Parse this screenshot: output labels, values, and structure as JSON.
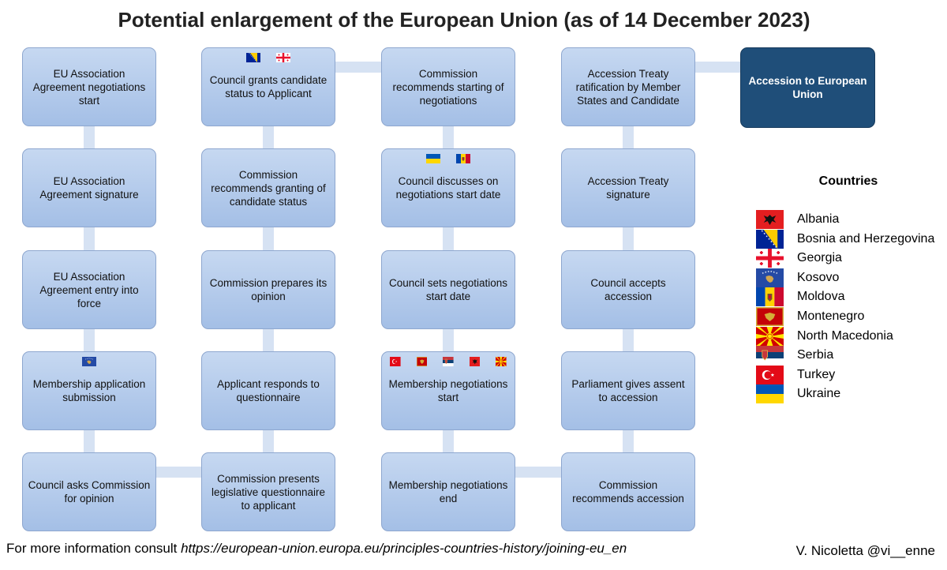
{
  "title": "Potential enlargement of the European Union (as of 14 December 2023)",
  "columns": [
    {
      "steps": [
        {
          "label": "EU Association Agreement negotiations start",
          "flags": []
        },
        {
          "label": "EU Association Agreement signature",
          "flags": []
        },
        {
          "label": "EU Association Agreement entry into force",
          "flags": []
        },
        {
          "label": "Membership application submission",
          "flags": [
            "kosovo"
          ]
        },
        {
          "label": "Council asks Commission for opinion",
          "flags": []
        }
      ]
    },
    {
      "steps": [
        {
          "label": "Council grants candidate status to Applicant",
          "flags": [
            "bosnia",
            "georgia"
          ]
        },
        {
          "label": "Commission recommends granting of candidate status",
          "flags": []
        },
        {
          "label": "Commission prepares its opinion",
          "flags": []
        },
        {
          "label": "Applicant responds to questionnaire",
          "flags": []
        },
        {
          "label": "Commission presents legislative questionnaire to applicant",
          "flags": []
        }
      ]
    },
    {
      "steps": [
        {
          "label": "Commission recommends starting of negotiations",
          "flags": []
        },
        {
          "label": "Council discusses on negotiations start date",
          "flags": [
            "ukraine",
            "moldova"
          ]
        },
        {
          "label": "Council sets negotiations start date",
          "flags": []
        },
        {
          "label": "Membership negotiations start",
          "flags": [
            "turkey",
            "montenegro",
            "serbia",
            "albania",
            "north-macedonia"
          ]
        },
        {
          "label": "Membership negotiations end",
          "flags": []
        }
      ]
    },
    {
      "steps": [
        {
          "label": "Accession Treaty ratification by Member States and Candidate",
          "flags": []
        },
        {
          "label": "Accession Treaty signature",
          "flags": []
        },
        {
          "label": "Council accepts accession",
          "flags": []
        },
        {
          "label": "Parliament gives assent to accession",
          "flags": []
        },
        {
          "label": "Commission recommends accession",
          "flags": []
        }
      ]
    }
  ],
  "final_step": {
    "label": "Accession to European Union"
  },
  "legend": {
    "title": "Countries",
    "items": [
      {
        "name": "Albania",
        "flag": "albania"
      },
      {
        "name": "Bosnia and Herzegovina",
        "flag": "bosnia"
      },
      {
        "name": "Georgia",
        "flag": "georgia"
      },
      {
        "name": "Kosovo",
        "flag": "kosovo"
      },
      {
        "name": "Moldova",
        "flag": "moldova"
      },
      {
        "name": "Montenegro",
        "flag": "montenegro"
      },
      {
        "name": "North Macedonia",
        "flag": "north-macedonia"
      },
      {
        "name": "Serbia",
        "flag": "serbia"
      },
      {
        "name": "Turkey",
        "flag": "turkey"
      },
      {
        "name": "Ukraine",
        "flag": "ukraine"
      }
    ]
  },
  "footer": {
    "prefix": "For more information consult ",
    "url": "https://european-union.europa.eu/principles-countries-history/joining-eu_en",
    "author": "V. Nicoletta @vi__enne"
  }
}
